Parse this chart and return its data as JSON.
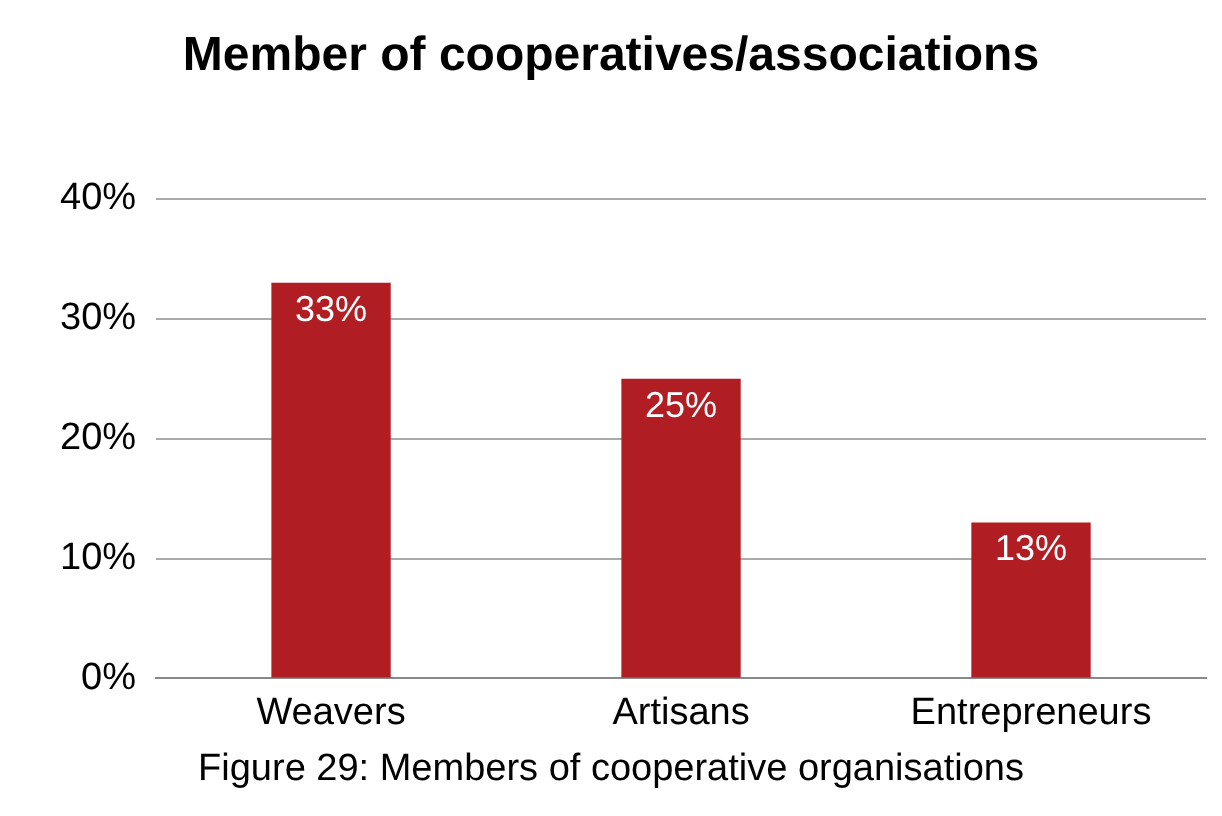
{
  "chart_data": {
    "type": "bar",
    "title": "Member of cooperatives/associations",
    "categories": [
      "Weavers",
      "Artisans",
      "Entrepreneurs"
    ],
    "values": [
      33,
      25,
      13
    ],
    "color": "#b01e24",
    "value_labels": [
      "33%",
      "25%",
      "13%"
    ],
    "ylim": [
      0,
      40
    ],
    "yticks": [
      {
        "value": 0,
        "label": "0%"
      },
      {
        "value": 10,
        "label": "10%"
      },
      {
        "value": 20,
        "label": "20%"
      },
      {
        "value": 30,
        "label": "30%"
      },
      {
        "value": 40,
        "label": "40%"
      }
    ],
    "grid": "y",
    "legend": false,
    "annotations": [
      "Figure 29: Members of cooperative organisations"
    ]
  }
}
